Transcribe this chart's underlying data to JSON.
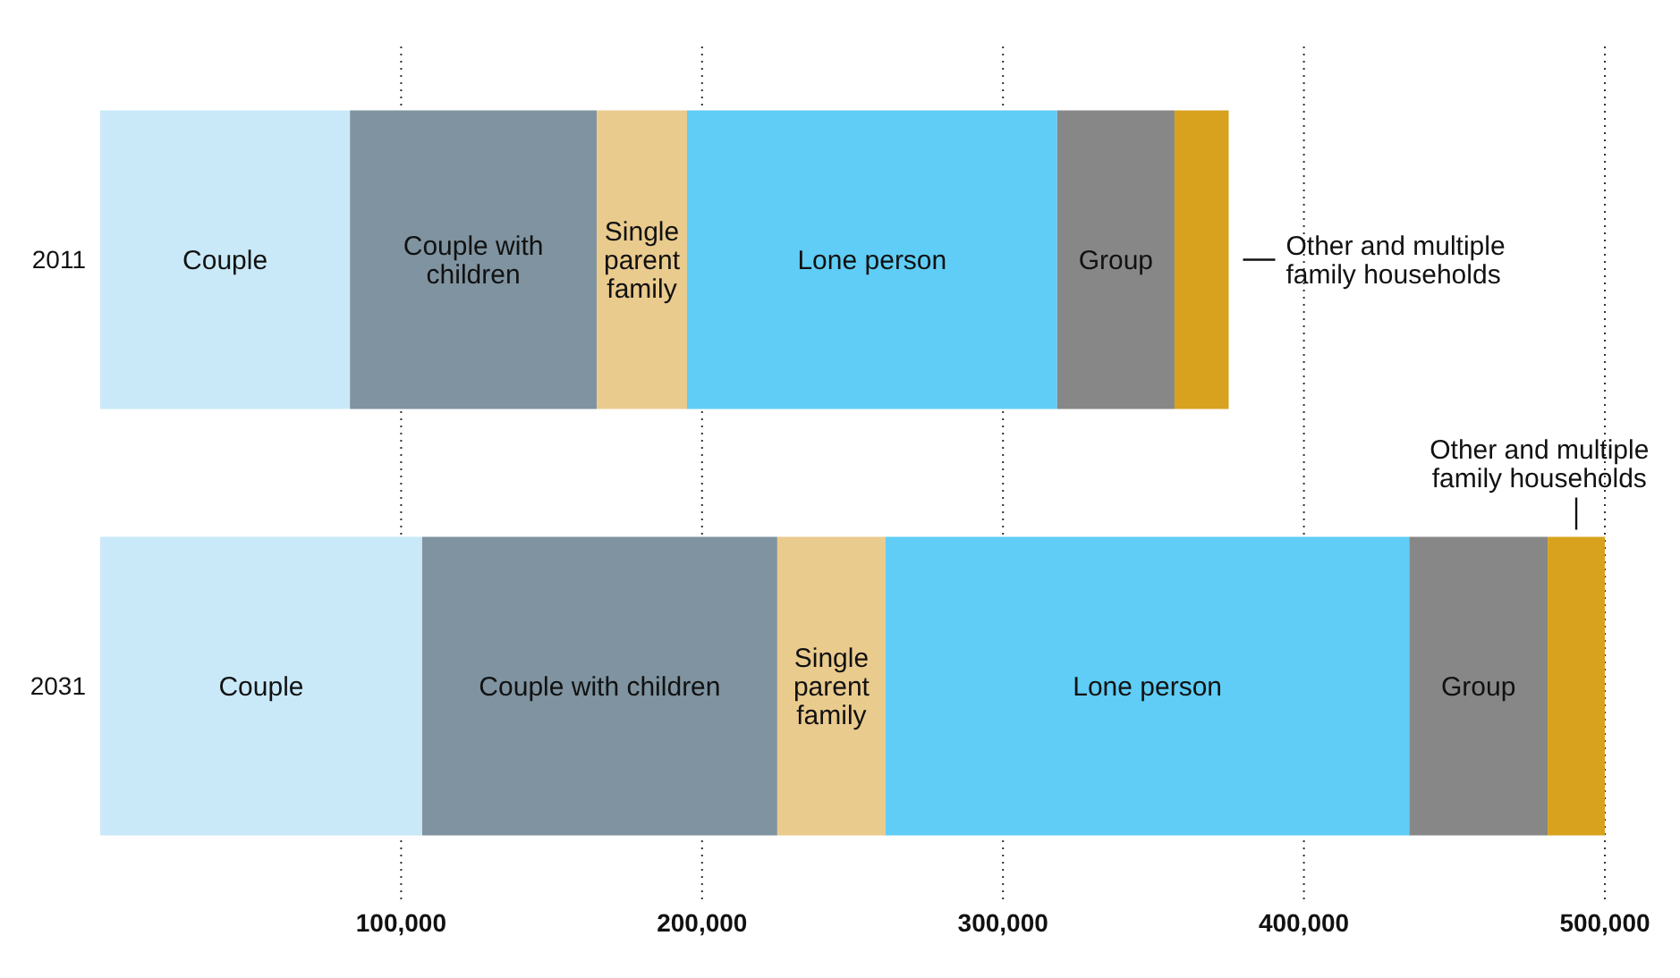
{
  "chart_data": {
    "type": "bar",
    "orientation": "horizontal",
    "stacked": true,
    "categories": [
      "2011",
      "2031"
    ],
    "series": [
      {
        "name": "Couple",
        "color": "#c9e9f8",
        "values": [
          83000,
          107000
        ]
      },
      {
        "name": "Couple with children",
        "color": "#7f93a0",
        "values": [
          82000,
          118000
        ]
      },
      {
        "name": "Single parent family",
        "color": "#eacb8e",
        "values": [
          30000,
          36000
        ]
      },
      {
        "name": "Lone person",
        "color": "#5fcdf6",
        "values": [
          123000,
          174000
        ]
      },
      {
        "name": "Group",
        "color": "#878787",
        "values": [
          39000,
          46000
        ]
      },
      {
        "name": "Other and multiple family households",
        "color": "#d8a21f",
        "values": [
          18000,
          19000
        ]
      }
    ],
    "xlim": [
      0,
      500000
    ],
    "xticks": [
      {
        "value": 100000,
        "label": "100,000"
      },
      {
        "value": 200000,
        "label": "200,000"
      },
      {
        "value": 300000,
        "label": "300,000"
      },
      {
        "value": 400000,
        "label": "400,000"
      },
      {
        "value": 500000,
        "label": "500,000"
      }
    ],
    "grid": "x"
  }
}
